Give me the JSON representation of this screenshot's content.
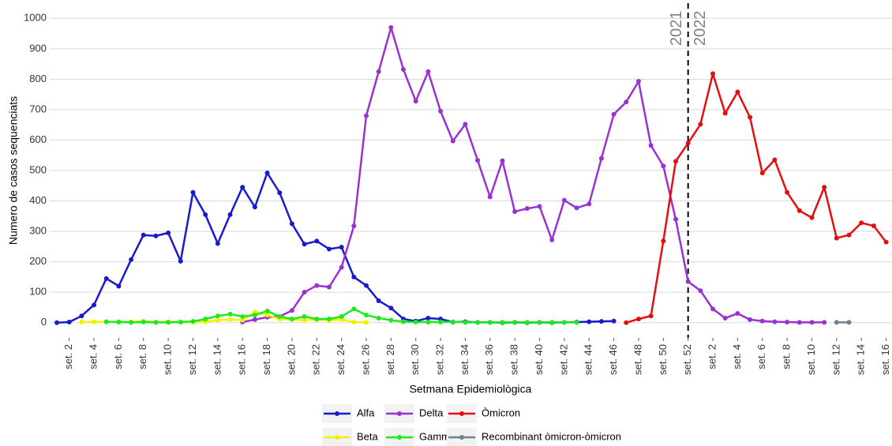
{
  "chart_data": {
    "type": "line",
    "x_label": "Setmana Epidemiològica",
    "y_label": "Numero de casos sequenciats",
    "annotations": [
      "2021",
      "2022"
    ],
    "categories": [
      null,
      "set. 2",
      null,
      "set. 4",
      null,
      "set. 6",
      null,
      "set. 8",
      null,
      "set. 10",
      null,
      "set. 12",
      null,
      "set. 14",
      null,
      "set. 16",
      null,
      "set. 18",
      null,
      "set. 20",
      null,
      "set. 22",
      null,
      "set. 24",
      null,
      "set. 26",
      null,
      "set. 28",
      null,
      "set. 30",
      null,
      "set. 32",
      null,
      "set. 34",
      null,
      "set. 36",
      null,
      "set. 38",
      null,
      "set. 40",
      null,
      "set. 42",
      null,
      "set. 44",
      null,
      "set. 46",
      null,
      "set. 48",
      null,
      "set. 50",
      null,
      "set. 52",
      null,
      "set. 2",
      null,
      "set. 4",
      null,
      "set. 6",
      null,
      "set. 8",
      null,
      "set. 10",
      null,
      "set. 12",
      null,
      "set. 14",
      null,
      "set. 16"
    ],
    "ylim": [
      -50,
      1050
    ],
    "yticks": [
      0,
      100,
      200,
      300,
      400,
      500,
      600,
      700,
      800,
      900,
      1000
    ],
    "grid": true,
    "series": [
      {
        "name": "Alfa",
        "color": "#1a1acd",
        "values": [
          0,
          2,
          22,
          58,
          145,
          120,
          207,
          288,
          285,
          295,
          202,
          428,
          355,
          260,
          355,
          445,
          380,
          492,
          427,
          325,
          258,
          268,
          242,
          248,
          150,
          122,
          72,
          48,
          12,
          5,
          15,
          12,
          2,
          3,
          1,
          1,
          0,
          1,
          0,
          1,
          0,
          1,
          2,
          3,
          4,
          5,
          null,
          null,
          null,
          null,
          null,
          null,
          null,
          null,
          null,
          null,
          null,
          null,
          null,
          null,
          null,
          null,
          null,
          null,
          null,
          null,
          null,
          null
        ]
      },
      {
        "name": "Delta",
        "color": "#9a32d2",
        "values": [
          null,
          null,
          null,
          null,
          null,
          null,
          null,
          null,
          null,
          null,
          null,
          null,
          null,
          null,
          null,
          2,
          10,
          18,
          20,
          40,
          100,
          122,
          117,
          182,
          318,
          680,
          825,
          970,
          832,
          728,
          825,
          695,
          597,
          652,
          533,
          413,
          532,
          365,
          375,
          382,
          272,
          402,
          377,
          390,
          540,
          685,
          725,
          793,
          582,
          515,
          340,
          135,
          105,
          45,
          15,
          30,
          10,
          5,
          3,
          2,
          1,
          1,
          1,
          null,
          null,
          null,
          null,
          null
        ]
      },
      {
        "name": "Òmicron",
        "color": "#e01010",
        "values": [
          null,
          null,
          null,
          null,
          null,
          null,
          null,
          null,
          null,
          null,
          null,
          null,
          null,
          null,
          null,
          null,
          null,
          null,
          null,
          null,
          null,
          null,
          null,
          null,
          null,
          null,
          null,
          null,
          null,
          null,
          null,
          null,
          null,
          null,
          null,
          null,
          null,
          null,
          null,
          null,
          null,
          null,
          null,
          null,
          null,
          null,
          0,
          12,
          22,
          268,
          530,
          590,
          652,
          818,
          688,
          758,
          675,
          492,
          535,
          428,
          368,
          345,
          445,
          278,
          288,
          328,
          318,
          265
        ]
      },
      {
        "name": "Beta",
        "color": "#f2f200",
        "values": [
          null,
          null,
          2,
          3,
          2,
          3,
          2,
          5,
          1,
          3,
          2,
          2,
          3,
          8,
          10,
          8,
          35,
          25,
          12,
          10,
          8,
          10,
          8,
          10,
          2,
          1,
          null,
          null,
          null,
          null,
          null,
          null,
          null,
          null,
          null,
          null,
          null,
          null,
          null,
          null,
          null,
          null,
          null,
          null,
          null,
          null,
          null,
          null,
          null,
          null,
          null,
          null,
          null,
          null,
          null,
          null,
          null,
          null,
          null,
          null,
          null,
          null,
          null,
          null,
          null,
          null,
          null,
          null
        ]
      },
      {
        "name": "Gamma",
        "color": "#1ee81e",
        "values": [
          null,
          null,
          null,
          null,
          3,
          2,
          1,
          2,
          1,
          1,
          2,
          4,
          12,
          22,
          28,
          20,
          25,
          38,
          20,
          12,
          20,
          12,
          12,
          20,
          45,
          25,
          15,
          8,
          3,
          2,
          2,
          2,
          3,
          1,
          1,
          1,
          1,
          1,
          1,
          1,
          1,
          1,
          1,
          null,
          null,
          null,
          null,
          null,
          null,
          null,
          null,
          null,
          null,
          null,
          null,
          null,
          null,
          null,
          null,
          null,
          null,
          null,
          null,
          null,
          null,
          null,
          null,
          null
        ]
      },
      {
        "name": "Recombinant òmicron-òmicron",
        "color": "#708090",
        "values": [
          null,
          null,
          null,
          null,
          null,
          null,
          null,
          null,
          null,
          null,
          null,
          null,
          null,
          null,
          null,
          null,
          null,
          null,
          null,
          null,
          null,
          null,
          null,
          null,
          null,
          null,
          null,
          null,
          null,
          null,
          null,
          null,
          null,
          null,
          null,
          null,
          null,
          null,
          null,
          null,
          null,
          null,
          null,
          null,
          null,
          null,
          null,
          null,
          null,
          null,
          null,
          null,
          null,
          null,
          null,
          null,
          null,
          null,
          null,
          null,
          null,
          null,
          null,
          1,
          1,
          null,
          null,
          null
        ]
      }
    ]
  }
}
